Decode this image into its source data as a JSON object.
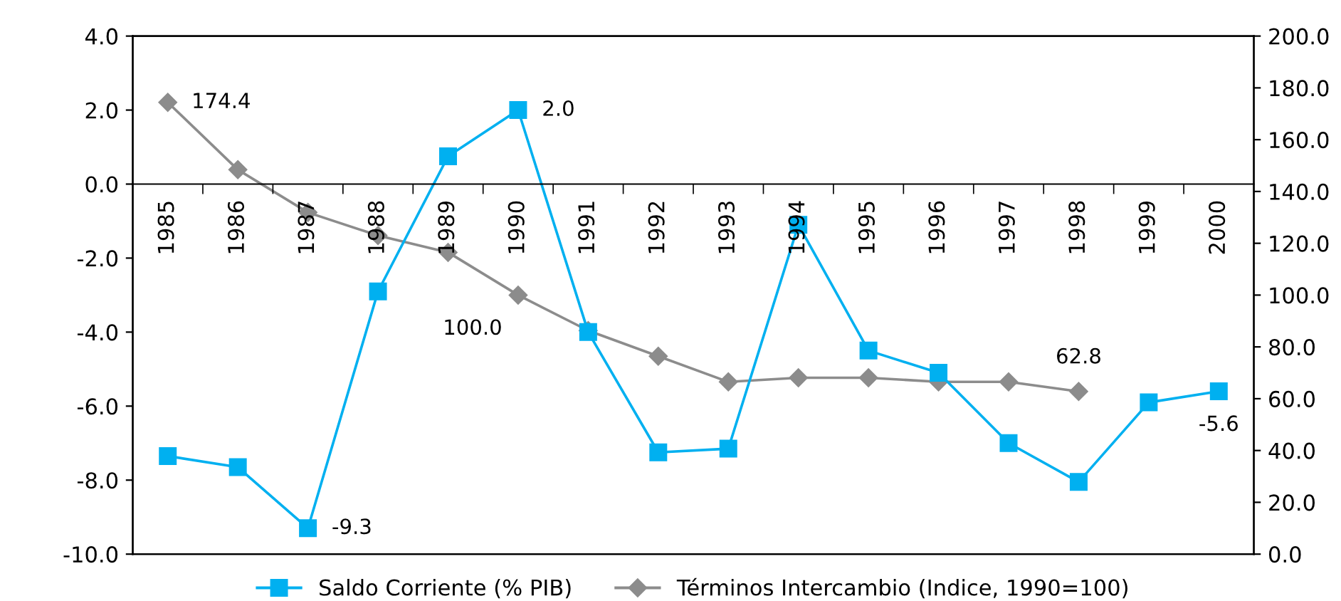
{
  "chart_data": {
    "type": "line",
    "categories": [
      "1985",
      "1986",
      "1987",
      "1988",
      "1989",
      "1990",
      "1991",
      "1992",
      "1993",
      "1994",
      "1995",
      "1996",
      "1997",
      "1998",
      "1999",
      "2000"
    ],
    "series": [
      {
        "name": "Saldo Corriente (% PIB)",
        "color": "#00b0f0",
        "marker": "square",
        "values": [
          -7.35,
          -7.65,
          -9.3,
          -2.9,
          0.75,
          2.0,
          -4.0,
          -7.25,
          -7.15,
          -1.1,
          -4.5,
          -5.1,
          -7.0,
          -8.05,
          -5.9,
          -5.6
        ],
        "value_labels": [
          null,
          null,
          "-9.3",
          null,
          null,
          "2.0",
          null,
          null,
          null,
          null,
          null,
          null,
          null,
          null,
          null,
          "-5.6"
        ]
      },
      {
        "name": "Términos Intercambio (Indice, 1990=100)",
        "color": "#8c8c8c",
        "marker": "diamond",
        "axis": "y2",
        "values": [
          174.4,
          148.4,
          131.9,
          123.0,
          116.5,
          100.0,
          86.3,
          76.4,
          66.5,
          68.1,
          68.1,
          66.5,
          66.5,
          62.8,
          null,
          null
        ],
        "value_labels": [
          "174.4",
          null,
          null,
          null,
          null,
          "100.0",
          null,
          null,
          null,
          null,
          null,
          null,
          null,
          "62.8",
          null,
          null
        ]
      }
    ],
    "ylim": [
      -10,
      4
    ],
    "yticks": [
      {
        "value": -10,
        "label": "-10.0"
      },
      {
        "value": -8,
        "label": "-8.0"
      },
      {
        "value": -6,
        "label": "-6.0"
      },
      {
        "value": -4,
        "label": "-4.0"
      },
      {
        "value": -2,
        "label": "-2.0"
      },
      {
        "value": 0,
        "label": "0.0"
      },
      {
        "value": 2,
        "label": "2.0"
      },
      {
        "value": 4,
        "label": "4.0"
      }
    ],
    "y2lim": [
      0,
      200
    ],
    "y2ticks": [
      {
        "value": 0,
        "label": "0.0"
      },
      {
        "value": 20,
        "label": "20.0"
      },
      {
        "value": 40,
        "label": "40.0"
      },
      {
        "value": 60,
        "label": "60.0"
      },
      {
        "value": 80,
        "label": "80.0"
      },
      {
        "value": 100,
        "label": "100.0"
      },
      {
        "value": 120,
        "label": "120.0"
      },
      {
        "value": 140,
        "label": "140.0"
      },
      {
        "value": 160,
        "label": "160.0"
      },
      {
        "value": 180,
        "label": "180.0"
      },
      {
        "value": 200,
        "label": "200.0"
      }
    ],
    "grid": false,
    "legend": "bottom",
    "line_style": "solid"
  }
}
